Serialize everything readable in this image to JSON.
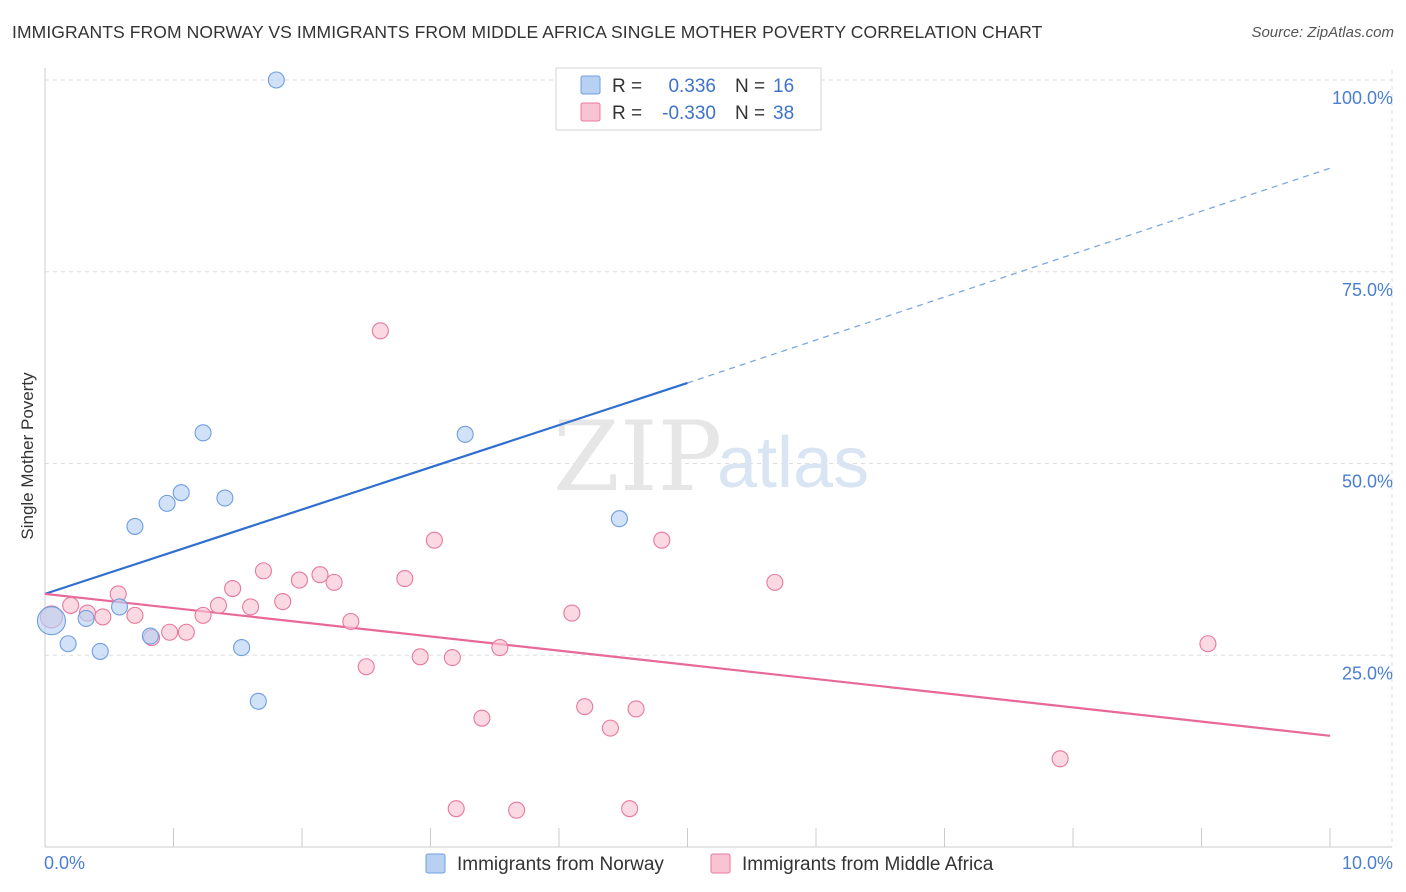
{
  "chart_data": {
    "type": "scatter",
    "title": "IMMIGRANTS FROM NORWAY VS IMMIGRANTS FROM MIDDLE AFRICA SINGLE MOTHER POVERTY CORRELATION CHART",
    "source": "Source: ZipAtlas.com",
    "ylabel": "Single Mother Poverty",
    "xlim": [
      0,
      10
    ],
    "ylim": [
      0,
      100
    ],
    "x_tick_labels": [
      "0.0%",
      "10.0%"
    ],
    "y_ticks": [
      25,
      50,
      75,
      100
    ],
    "y_tick_labels": [
      "25.0%",
      "50.0%",
      "75.0%",
      "100.0%"
    ],
    "grid": true,
    "watermark": [
      "ZIP",
      "atlas"
    ],
    "legend_position": "top-center",
    "series": [
      {
        "name": "Immigrants from Norway",
        "color": "#6e9ee0",
        "fill": "#b8d1f3",
        "r_label": "R =",
        "r_value": "0.336",
        "n_label": "N =",
        "n_value": "16",
        "points": [
          [
            0.05,
            29.5
          ],
          [
            0.18,
            26.5
          ],
          [
            0.32,
            29.8
          ],
          [
            0.43,
            25.5
          ],
          [
            0.58,
            31.3
          ],
          [
            0.7,
            41.8
          ],
          [
            0.82,
            27.5
          ],
          [
            0.95,
            44.8
          ],
          [
            1.06,
            46.2
          ],
          [
            1.23,
            54.0
          ],
          [
            1.4,
            45.5
          ],
          [
            1.53,
            26.0
          ],
          [
            1.66,
            19.0
          ],
          [
            1.8,
            100.0
          ],
          [
            3.27,
            53.8
          ],
          [
            4.47,
            42.8
          ]
        ],
        "trend": {
          "x0": 0.0,
          "y0": 33.0,
          "x1": 5.0,
          "y1": 60.5,
          "x_dash_end": 10.0,
          "y_dash_end": 88.5
        }
      },
      {
        "name": "Immigrants from Middle Africa",
        "color": "#e8789e",
        "fill": "#f8c4d4",
        "r_label": "R =",
        "r_value": "-0.330",
        "n_label": "N =",
        "n_value": "38",
        "points": [
          [
            0.05,
            30.0
          ],
          [
            0.2,
            31.5
          ],
          [
            0.33,
            30.5
          ],
          [
            0.45,
            30.0
          ],
          [
            0.57,
            33.0
          ],
          [
            0.7,
            30.2
          ],
          [
            0.83,
            27.3
          ],
          [
            0.97,
            28.0
          ],
          [
            1.1,
            28.0
          ],
          [
            1.23,
            30.2
          ],
          [
            1.35,
            31.5
          ],
          [
            1.46,
            33.7
          ],
          [
            1.6,
            31.3
          ],
          [
            1.7,
            36.0
          ],
          [
            1.85,
            32.0
          ],
          [
            1.98,
            34.8
          ],
          [
            2.14,
            35.5
          ],
          [
            2.25,
            34.5
          ],
          [
            2.38,
            29.4
          ],
          [
            2.5,
            23.5
          ],
          [
            2.61,
            67.3
          ],
          [
            2.8,
            35.0
          ],
          [
            2.92,
            24.8
          ],
          [
            3.03,
            40.0
          ],
          [
            3.17,
            24.7
          ],
          [
            3.2,
            5.0
          ],
          [
            3.4,
            16.8
          ],
          [
            3.54,
            26.0
          ],
          [
            3.67,
            4.8
          ],
          [
            4.1,
            30.5
          ],
          [
            4.2,
            18.3
          ],
          [
            4.4,
            15.5
          ],
          [
            4.55,
            5.0
          ],
          [
            4.6,
            18.0
          ],
          [
            4.8,
            40.0
          ],
          [
            5.68,
            34.5
          ],
          [
            7.9,
            11.5
          ],
          [
            9.05,
            26.5
          ]
        ],
        "trend": {
          "x0": 0.0,
          "y0": 33.0,
          "x1": 10.0,
          "y1": 14.5
        }
      }
    ]
  }
}
